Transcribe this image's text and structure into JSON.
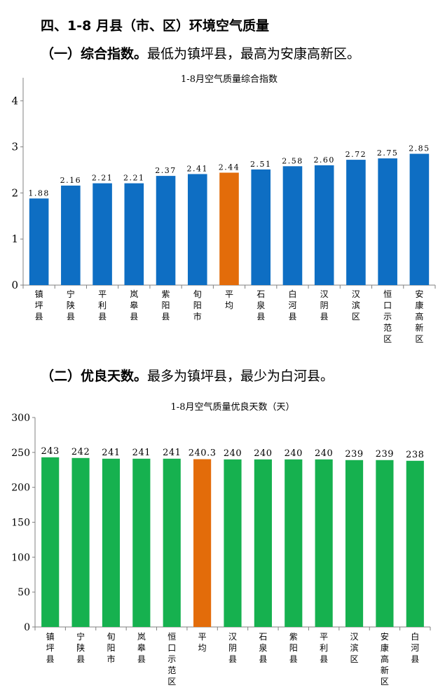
{
  "heading": "四、1-8 月县（市、区）环境空气质量",
  "section1": {
    "label": "（一）综合指数。",
    "text": "最低为镇坪县，最高为安康高新区。"
  },
  "section2": {
    "label": "（二）优良天数。",
    "text": "最多为镇坪县，最少为白河县。"
  },
  "colors": {
    "blue": "#0e6ec3",
    "orange": "#e36c0a",
    "green": "#16b14f"
  },
  "chart_data": [
    {
      "type": "bar",
      "title": "1-8月空气质量综合指数",
      "categories": [
        "镇坪县",
        "宁陕县",
        "平利县",
        "岚皋县",
        "紫阳县",
        "旬阳市",
        "平均",
        "石泉县",
        "白河县",
        "汉阴县",
        "汉滨区",
        "恒口示范区",
        "安康高新区"
      ],
      "values": [
        1.88,
        2.16,
        2.21,
        2.21,
        2.37,
        2.41,
        2.44,
        2.51,
        2.58,
        2.6,
        2.72,
        2.75,
        2.85
      ],
      "value_labels": [
        "1.88",
        "2.16",
        "2.21",
        "2.21",
        "2.37",
        "2.41",
        "2.44",
        "2.51",
        "2.58",
        "2.60",
        "2.72",
        "2.75",
        "2.85"
      ],
      "highlight_index": 6,
      "ylim": [
        0,
        4.5
      ],
      "yticks": [
        0,
        1,
        2,
        3,
        4
      ],
      "grid": false,
      "legend": "none"
    },
    {
      "type": "bar",
      "title": "1-8月空气质量优良天数（天）",
      "categories": [
        "镇坪县",
        "宁陕县",
        "旬阳市",
        "岚皋县",
        "恒口示范区",
        "平均",
        "汉阴县",
        "石泉县",
        "紫阳县",
        "平利县",
        "汉滨区",
        "安康高新区",
        "白河县"
      ],
      "values": [
        243,
        242,
        241,
        241,
        241,
        240.3,
        240,
        240,
        240,
        240,
        239,
        239,
        238
      ],
      "value_labels": [
        "243",
        "242",
        "241",
        "241",
        "241",
        "240.3",
        "240",
        "240",
        "240",
        "240",
        "239",
        "239",
        "238"
      ],
      "highlight_index": 5,
      "ylim": [
        0,
        300
      ],
      "yticks": [
        0,
        50,
        100,
        150,
        200,
        250,
        300
      ],
      "grid": false,
      "legend": "none"
    }
  ]
}
